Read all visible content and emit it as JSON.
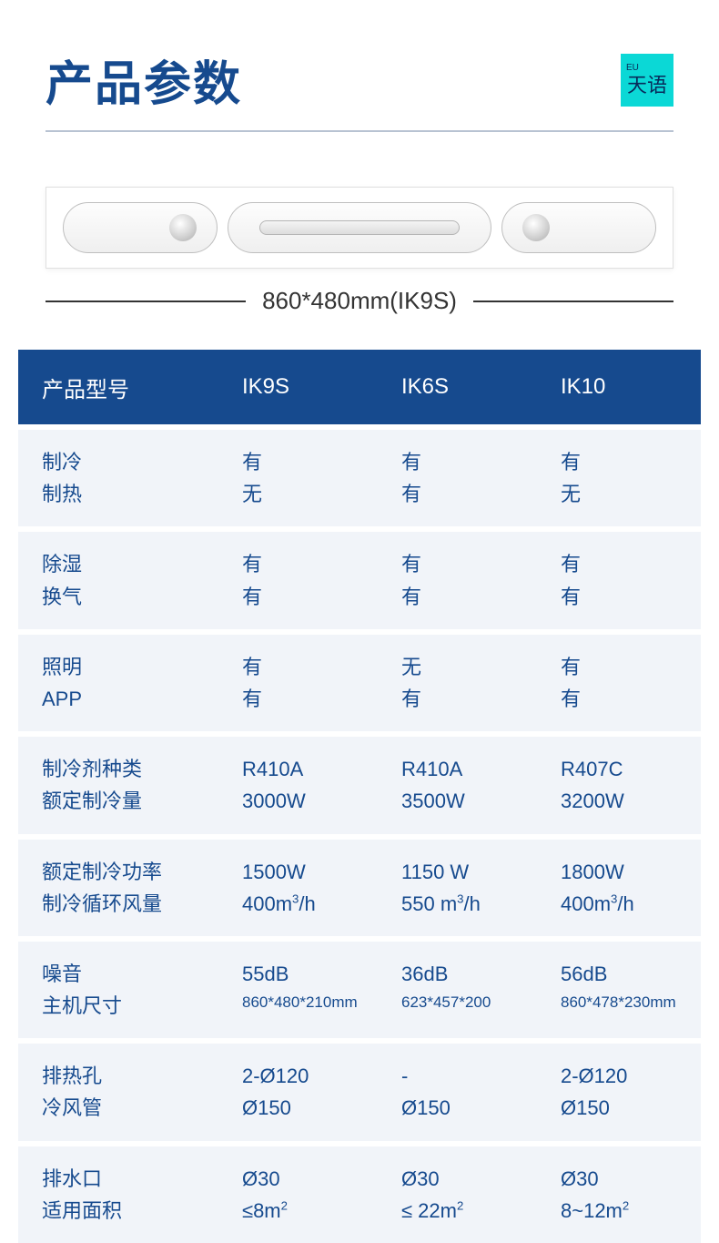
{
  "title": "产品参数",
  "logo": {
    "eu": "EU",
    "cn": "天语"
  },
  "dimension_label": "860*480mm(IK9S)",
  "colors": {
    "primary": "#164a8e",
    "row_bg": "#f1f4f9",
    "accent": "#0bd8d6",
    "divider": "#b8c3d2"
  },
  "table": {
    "header": [
      "产品型号",
      "IK9S",
      "IK6S",
      "IK10"
    ],
    "groups": [
      {
        "rows": [
          {
            "label": "制冷",
            "values": [
              "有",
              "有",
              "有"
            ]
          },
          {
            "label": "制热",
            "values": [
              "无",
              "有",
              "无"
            ]
          }
        ]
      },
      {
        "rows": [
          {
            "label": "除湿",
            "values": [
              "有",
              "有",
              "有"
            ]
          },
          {
            "label": "换气",
            "values": [
              "有",
              "有",
              "有"
            ]
          }
        ]
      },
      {
        "rows": [
          {
            "label": "照明",
            "values": [
              "有",
              "无",
              "有"
            ]
          },
          {
            "label": "APP",
            "values": [
              "有",
              "有",
              "有"
            ]
          }
        ]
      },
      {
        "rows": [
          {
            "label": "制冷剂种类",
            "values": [
              "R410A",
              "R410A",
              "R407C"
            ]
          },
          {
            "label": "额定制冷量",
            "values": [
              "3000W",
              "3500W",
              "3200W"
            ]
          }
        ]
      },
      {
        "rows": [
          {
            "label": "额定制冷功率",
            "values": [
              "1500W",
              "1150 W",
              "1800W"
            ]
          },
          {
            "label": "制冷循环风量",
            "values": [
              "400m³/h",
              "550 m³/h",
              "400m³/h"
            ]
          }
        ]
      },
      {
        "rows": [
          {
            "label": "噪音",
            "values": [
              "55dB",
              "36dB",
              "56dB"
            ]
          },
          {
            "label": "主机尺寸",
            "values": [
              "860*480*210mm",
              "623*457*200",
              "860*478*230mm"
            ],
            "small": true
          }
        ]
      },
      {
        "rows": [
          {
            "label": "排热孔",
            "values": [
              "2-Ø120",
              "-",
              "2-Ø120"
            ]
          },
          {
            "label": "冷风管",
            "values": [
              "Ø150",
              "Ø150",
              "Ø150"
            ]
          }
        ]
      },
      {
        "rows": [
          {
            "label": "排水口",
            "values": [
              "Ø30",
              "Ø30",
              "Ø30"
            ]
          },
          {
            "label": "适用面积",
            "values": [
              "≤8m²",
              "≤ 22m²",
              "8~12m²"
            ]
          }
        ]
      }
    ]
  }
}
